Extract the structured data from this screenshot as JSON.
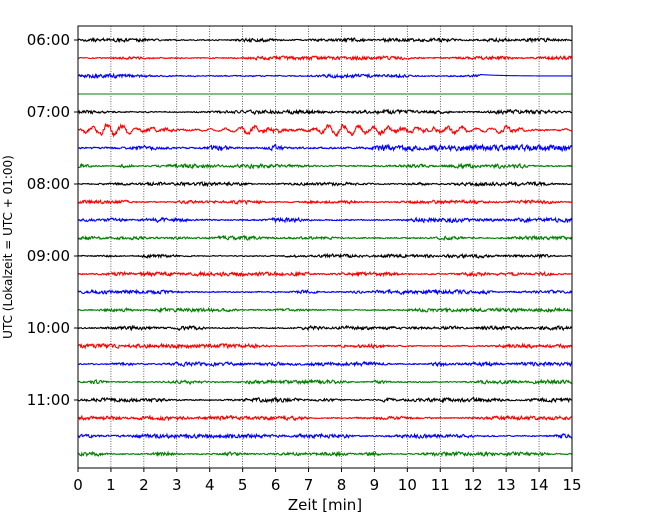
{
  "chart_data": {
    "type": "line",
    "xlabel": "Zeit  [min]",
    "ylabel": "UTC (Lokalzeit = UTC + 01:00)",
    "xlim": [
      0,
      15
    ],
    "x_ticks": [
      0,
      1,
      2,
      3,
      4,
      5,
      6,
      7,
      8,
      9,
      10,
      11,
      12,
      13,
      14,
      15
    ],
    "x_grid": true,
    "y_tick_labels": [
      "06:00",
      "07:00",
      "08:00",
      "09:00",
      "10:00",
      "11:00"
    ],
    "y_tick_trace_index": [
      0,
      4,
      8,
      12,
      16,
      20
    ],
    "trace_interval_min": 15,
    "colors": [
      "#000000",
      "#ff0000",
      "#0000ff",
      "#008000"
    ],
    "traces": [
      {
        "start": "06:00",
        "color": "#000000",
        "amplitude": 0.55
      },
      {
        "start": "06:15",
        "color": "#ff0000",
        "amplitude": 0.55
      },
      {
        "start": "06:30",
        "color": "#0000ff",
        "amplitude": 0.6,
        "ends_at_min": 12.2
      },
      {
        "start": "06:45",
        "color": "#008000",
        "amplitude": 0.0
      },
      {
        "start": "07:00",
        "color": "#000000",
        "amplitude": 0.6
      },
      {
        "start": "07:15",
        "color": "#ff0000",
        "amplitude": 1.3
      },
      {
        "start": "07:30",
        "color": "#0000ff",
        "amplitude": 0.9
      },
      {
        "start": "07:45",
        "color": "#008000",
        "amplitude": 0.65
      },
      {
        "start": "08:00",
        "color": "#000000",
        "amplitude": 0.55
      },
      {
        "start": "08:15",
        "color": "#ff0000",
        "amplitude": 0.55
      },
      {
        "start": "08:30",
        "color": "#0000ff",
        "amplitude": 0.65
      },
      {
        "start": "08:45",
        "color": "#008000",
        "amplitude": 0.6
      },
      {
        "start": "09:00",
        "color": "#000000",
        "amplitude": 0.55
      },
      {
        "start": "09:15",
        "color": "#ff0000",
        "amplitude": 0.6
      },
      {
        "start": "09:30",
        "color": "#0000ff",
        "amplitude": 0.6
      },
      {
        "start": "09:45",
        "color": "#008000",
        "amplitude": 0.55
      },
      {
        "start": "10:00",
        "color": "#000000",
        "amplitude": 0.6
      },
      {
        "start": "10:15",
        "color": "#ff0000",
        "amplitude": 0.6
      },
      {
        "start": "10:30",
        "color": "#0000ff",
        "amplitude": 0.6
      },
      {
        "start": "10:45",
        "color": "#008000",
        "amplitude": 0.6
      },
      {
        "start": "11:00",
        "color": "#000000",
        "amplitude": 0.6
      },
      {
        "start": "11:15",
        "color": "#ff0000",
        "amplitude": 0.6
      },
      {
        "start": "11:30",
        "color": "#0000ff",
        "amplitude": 0.6
      },
      {
        "start": "11:45",
        "color": "#008000",
        "amplitude": 0.6
      }
    ]
  }
}
